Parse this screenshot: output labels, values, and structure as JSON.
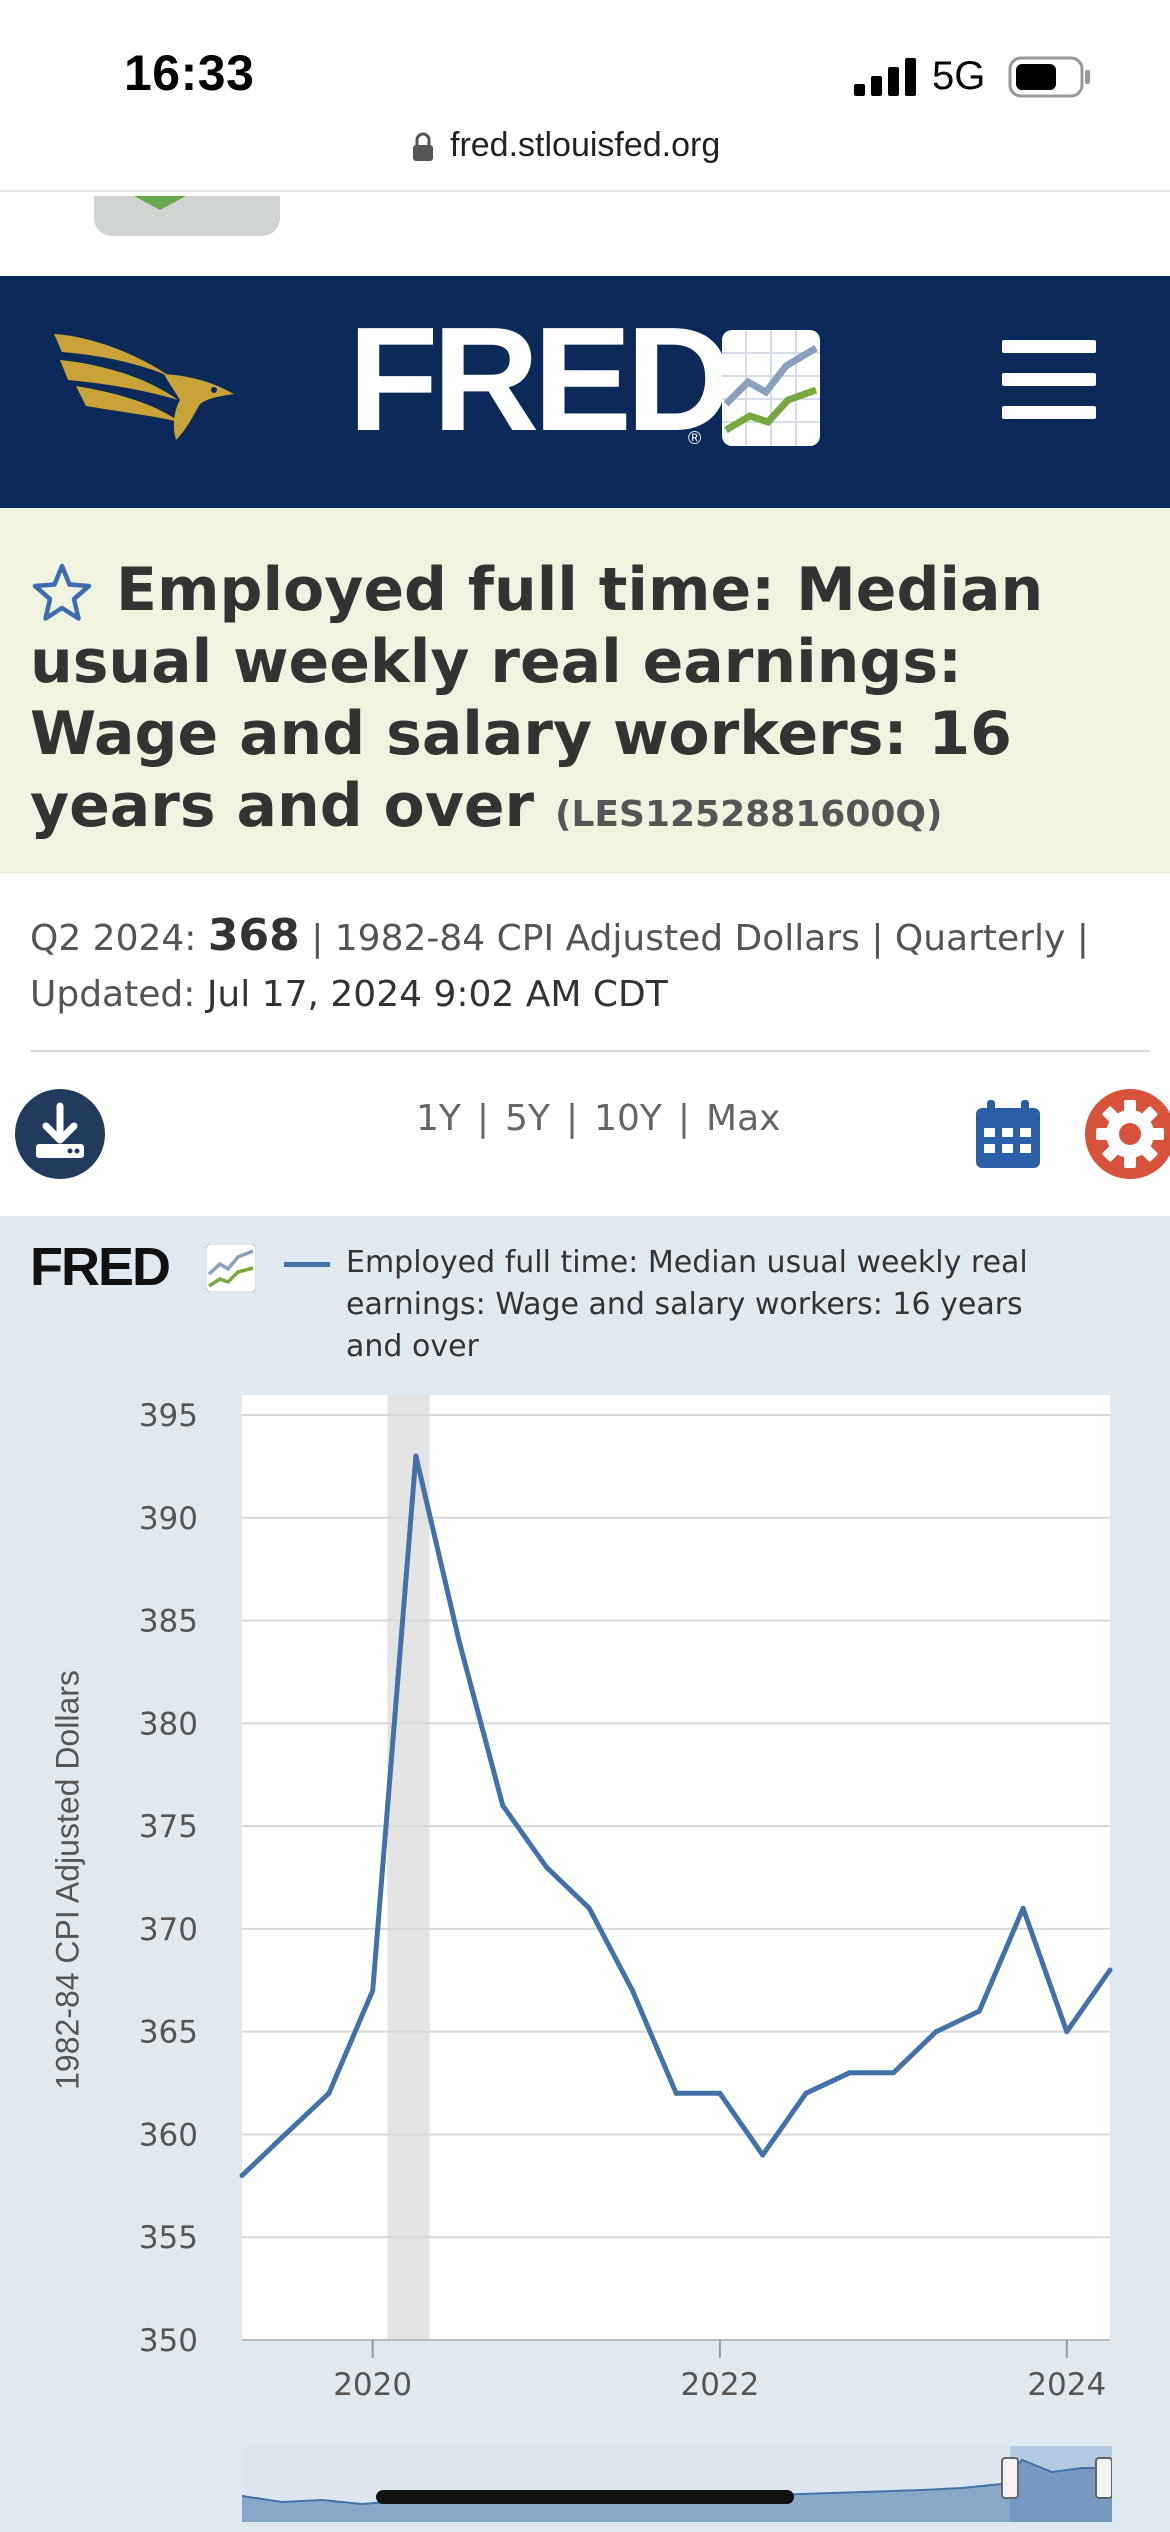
{
  "status_bar": {
    "time": "16:33",
    "network": "5G",
    "icons": [
      "signal-icon",
      "battery-icon"
    ]
  },
  "browser": {
    "url": "fred.stlouisfed.org",
    "icons": [
      "lock-icon"
    ]
  },
  "header": {
    "logo_text": "FRED",
    "reg_mark": "®",
    "icons": [
      "eagle-icon",
      "fred-graph-icon",
      "menu-icon"
    ],
    "colors": {
      "background": "#0b2a59",
      "eagle": "#c9a238"
    }
  },
  "series": {
    "title": "Employed full time: Median usual weekly real earnings: Wage and salary workers: 16 years and over",
    "id": "(LES1252881600Q)",
    "latest_period_label": "Q2 2024:",
    "latest_value": "368",
    "units": "| 1982-84 CPI Adjusted Dollars | Quarterly |",
    "updated_label": "Updated:",
    "updated_value": "Jul 17, 2024 9:02 AM CDT"
  },
  "controls": {
    "ranges": [
      "1Y",
      "5Y",
      "10Y",
      "Max"
    ],
    "separator": "|",
    "icons": [
      "download-icon",
      "calendar-icon",
      "gear-icon"
    ]
  },
  "graph": {
    "logo_text": "FRED",
    "legend": "Employed full time: Median usual weekly real earnings: Wage and salary workers: 16 years and over",
    "line_color": "#4472a8",
    "recession_color": "#e4e4e4"
  },
  "chart_data": {
    "type": "line",
    "ylabel": "1982-84 CPI Adjusted Dollars",
    "ylim": [
      350,
      395
    ],
    "yticks": [
      "395",
      "390",
      "385",
      "380",
      "375",
      "370",
      "365",
      "360",
      "355",
      "350"
    ],
    "xticks": [
      "2020",
      "2022",
      "2024"
    ],
    "xlim": [
      "2019-04-01",
      "2024-04-01"
    ],
    "grid": true,
    "legend_position": "top",
    "recession": [
      "2020-02-01",
      "2020-04-30"
    ],
    "series": [
      {
        "name": "Employed full time: Median usual weekly real earnings: Wage and salary workers: 16 years and over",
        "x": [
          "2019-04-01",
          "2019-07-01",
          "2019-10-01",
          "2020-01-01",
          "2020-04-01",
          "2020-07-01",
          "2020-10-01",
          "2021-01-01",
          "2021-04-01",
          "2021-07-01",
          "2021-10-01",
          "2022-01-01",
          "2022-04-01",
          "2022-07-01",
          "2022-10-01",
          "2023-01-01",
          "2023-04-01",
          "2023-07-01",
          "2023-10-01",
          "2024-01-01",
          "2024-04-01"
        ],
        "values": [
          358,
          360,
          362,
          367,
          393,
          384,
          376,
          373,
          371,
          367,
          362,
          362,
          359,
          362,
          363,
          363,
          365,
          366,
          371,
          365,
          368
        ]
      }
    ]
  }
}
